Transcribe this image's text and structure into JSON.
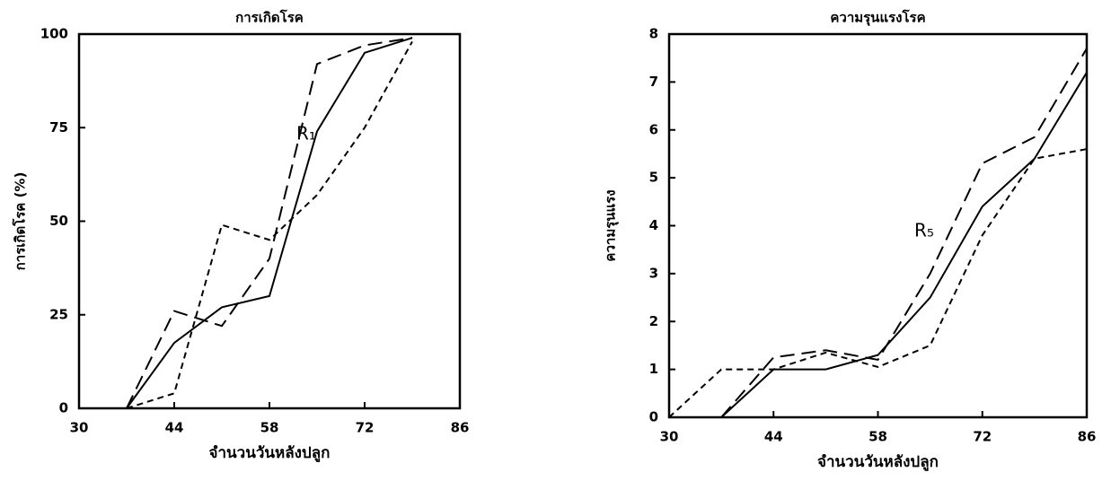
{
  "chart_data": [
    {
      "type": "line",
      "title": "การเกิดโรค",
      "xlabel": "จำนวนวันหลังปลูก",
      "ylabel": "การเกิดโรค (%)",
      "annotation": "R₁",
      "x": [
        37,
        44,
        51,
        58,
        65,
        72,
        79
      ],
      "xlim": [
        30,
        86
      ],
      "xticks": [
        30,
        44,
        58,
        72,
        86
      ],
      "ylim": [
        0,
        100
      ],
      "yticks": [
        0,
        25,
        50,
        75,
        100
      ],
      "series": [
        {
          "color": "#000000",
          "dash": "solid",
          "values": [
            0,
            17.5,
            27,
            30,
            74,
            95,
            99
          ]
        },
        {
          "color": "#000000",
          "dash": "long",
          "values": [
            0,
            26,
            22,
            40,
            92,
            97,
            99
          ]
        },
        {
          "color": "#000000",
          "dash": "short",
          "values": [
            0,
            4,
            49,
            45,
            57,
            75,
            98
          ]
        }
      ]
    },
    {
      "type": "line",
      "title": "ความรุนแรงโรค",
      "xlabel": "จำนวนวันหลังปลูก",
      "ylabel": "ความรุนแรง",
      "annotation": "R₅",
      "x": [
        30,
        37,
        44,
        51,
        58,
        65,
        72,
        79,
        86
      ],
      "xlim": [
        30,
        86
      ],
      "xticks": [
        30,
        44,
        58,
        72,
        86
      ],
      "ylim": [
        0,
        8
      ],
      "yticks": [
        0,
        1,
        2,
        3,
        4,
        5,
        6,
        7,
        8
      ],
      "series": [
        {
          "color": "#000000",
          "dash": "solid",
          "values": [
            null,
            0,
            1.0,
            1.0,
            1.3,
            2.5,
            4.4,
            5.4,
            7.2
          ]
        },
        {
          "color": "#000000",
          "dash": "long",
          "values": [
            null,
            0,
            1.25,
            1.4,
            1.2,
            3.0,
            5.3,
            5.85,
            7.7
          ]
        },
        {
          "color": "#000000",
          "dash": "short",
          "values": [
            0,
            1.0,
            1.0,
            1.35,
            1.05,
            1.5,
            3.8,
            5.4,
            5.6
          ]
        }
      ]
    }
  ]
}
